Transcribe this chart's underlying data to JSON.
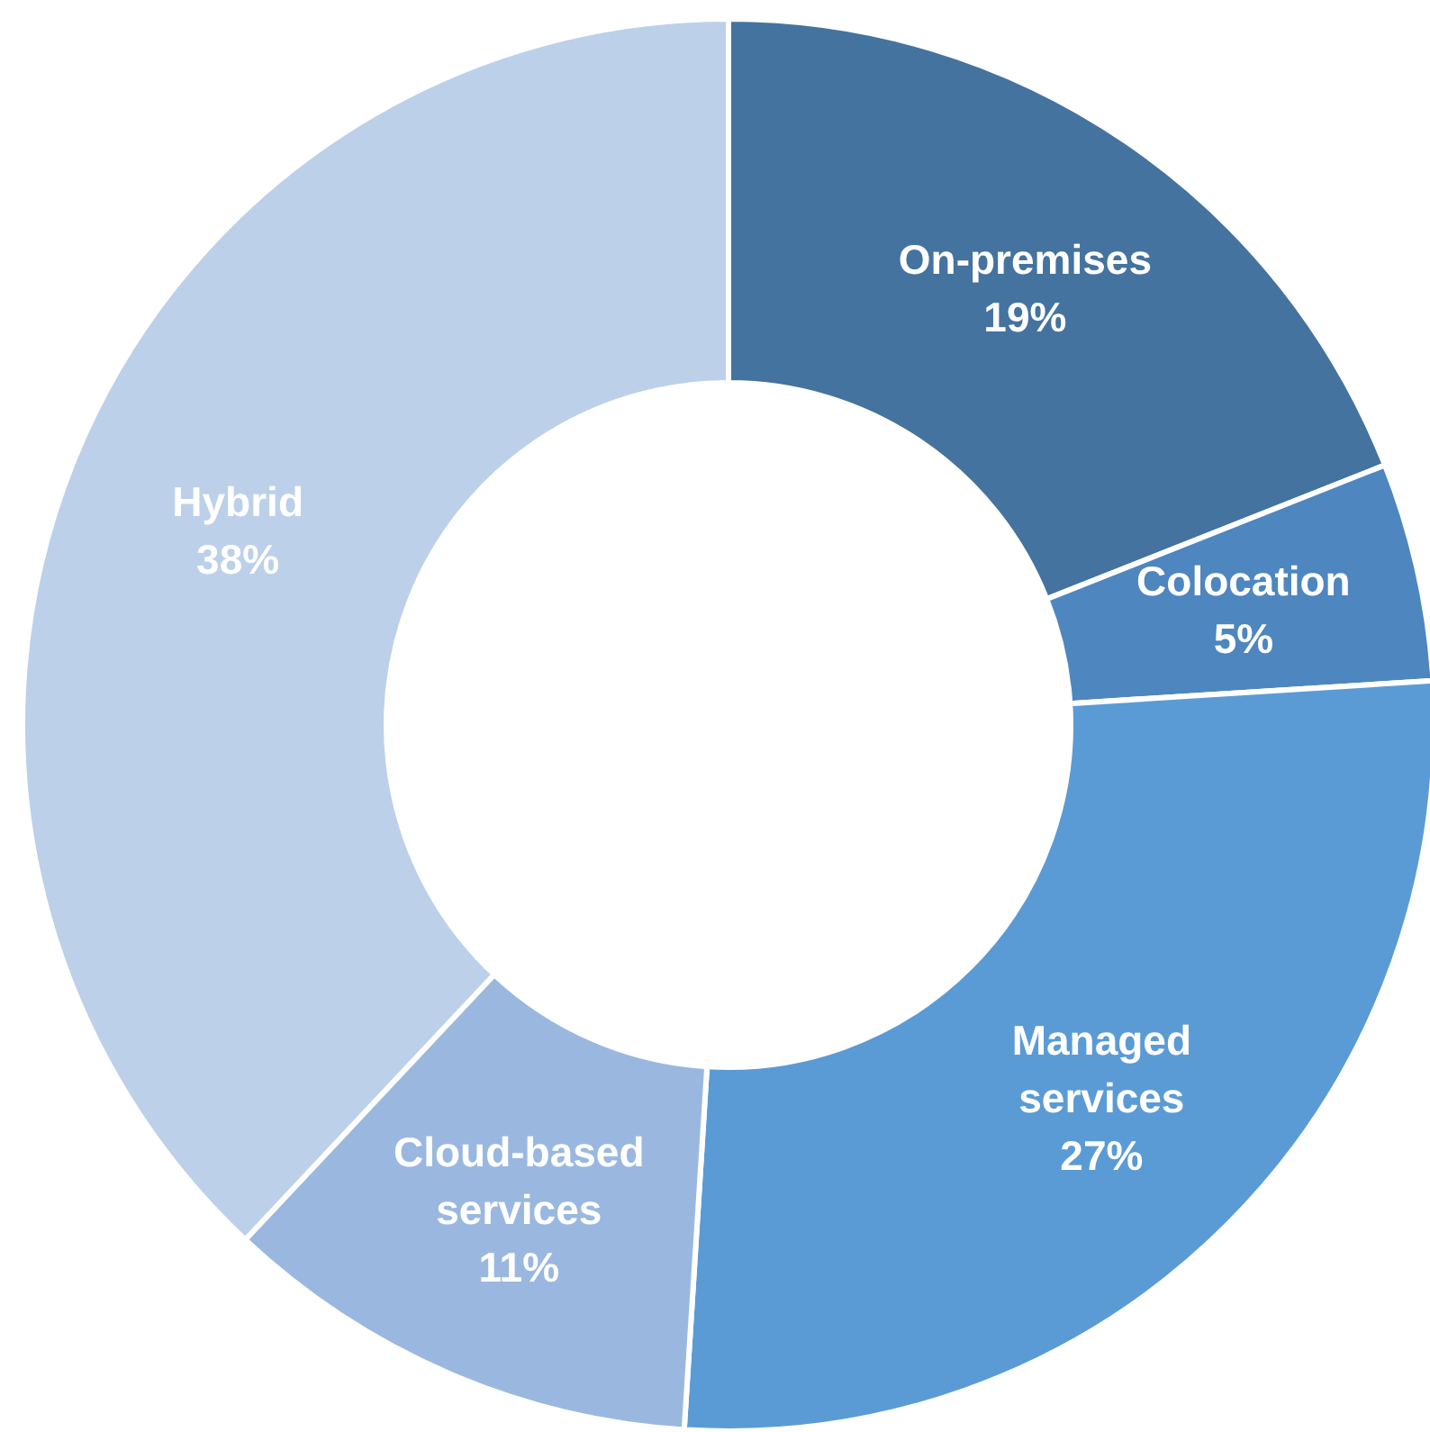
{
  "chart_data": {
    "type": "donut",
    "categories": [
      "On-premises",
      "Colocation",
      "Managed services",
      "Cloud-based services",
      "Hybrid"
    ],
    "values": [
      19,
      5,
      27,
      11,
      38
    ],
    "value_labels": [
      "19%",
      "5%",
      "27%",
      "11%",
      "38%"
    ],
    "colors": [
      "#44739f",
      "#4e86bf",
      "#5b9bd5",
      "#9ab8df",
      "#bcd0ea"
    ]
  }
}
